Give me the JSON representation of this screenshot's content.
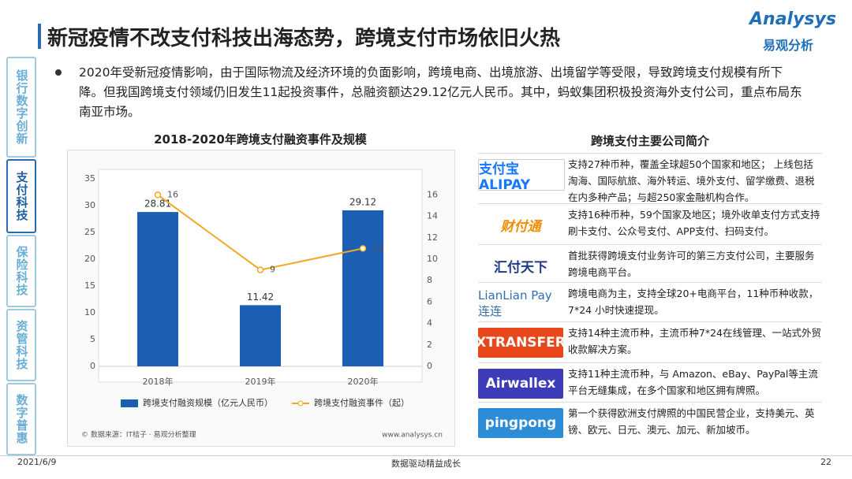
{
  "header": {
    "title": "新冠疫情不改支付科技出海态势，跨境支付市场依旧火热",
    "logo_en": "Analysys",
    "logo_cn": "易观分析"
  },
  "sidebar": [
    "银行数字创新",
    "支付科技",
    "保险科技",
    "资管科技",
    "数字普惠"
  ],
  "bullet": "2020年受新冠疫情影响，由于国际物流及经济环境的负面影响，跨境电商、出境旅游、出境留学等受限，导致跨境支付规模有所下降。但我国跨境支付领域仍旧发生11起投资事件，总融资额达29.12亿元人民币。其中，蚂蚁集团积极投资海外支付公司，重点布局东南亚市场。",
  "chart_data": {
    "type": "bar",
    "title": "2018-2020年跨境支付融资事件及规模",
    "categories": [
      "2018年",
      "2019年",
      "2020年"
    ],
    "series": [
      {
        "name": "跨境支付融资规模（亿元人民币）",
        "color": "#1a5fb4",
        "values": [
          28.81,
          11.42,
          29.12
        ]
      },
      {
        "name": "跨境支付融资事件（起）",
        "color": "#f5a623",
        "values": [
          16,
          9,
          11
        ],
        "axis": "y2",
        "type": "line"
      }
    ],
    "ylim": [
      0,
      35
    ],
    "yticks": [
      0,
      5,
      10,
      15,
      20,
      25,
      30,
      35
    ],
    "y2lim": [
      0,
      17.5
    ],
    "y2ticks": [
      0,
      2,
      4,
      6,
      8,
      10,
      12,
      14,
      16
    ],
    "grid": false,
    "legend": "bottom",
    "source": "© 数据来源：IT桔子 · 易观分析整理",
    "website": "www.analysys.cn"
  },
  "companies": {
    "title": "跨境支付主要公司简介",
    "items": [
      {
        "logo": "支付宝 ALIPAY",
        "desc": "支持27种币种，覆盖全球超50个国家和地区； 上线包括淘海、国际航旅、海外转运、境外支付、留学缴费、退税在内多种产品；与超250家金融机构合作。"
      },
      {
        "logo": "财付通",
        "desc": "支持16种币种，59个国家及地区；境外收单支付方式支持刷卡支付、公众号支付、APP支付、扫码支付。"
      },
      {
        "logo": "汇付天下",
        "desc": "首批获得跨境支付业务许可的第三方支付公司，主要服务跨境电商平台。"
      },
      {
        "logo": "LianLian Pay 连连",
        "desc": "跨境电商为主，支持全球20+电商平台，11种币种收款，7*24 小时快速提现。"
      },
      {
        "logo": "XTRANSFER",
        "desc": "支持14种主流币种，主流币种7*24在线管理、一站式外贸收款解决方案。"
      },
      {
        "logo": "Airwallex",
        "desc": "支持11种主流币种，与 Amazon、eBay、PayPal等主流平台无缝集成，在多个国家和地区拥有牌照。"
      },
      {
        "logo": "pingpong",
        "desc": "第一个获得欧洲支付牌照的中国民营企业，支持美元、英镑、欧元、日元、澳元、加元、新加坡币。"
      }
    ]
  },
  "footer": {
    "date": "2021/6/9",
    "slogan": "数据驱动精益成长",
    "page": "22"
  }
}
